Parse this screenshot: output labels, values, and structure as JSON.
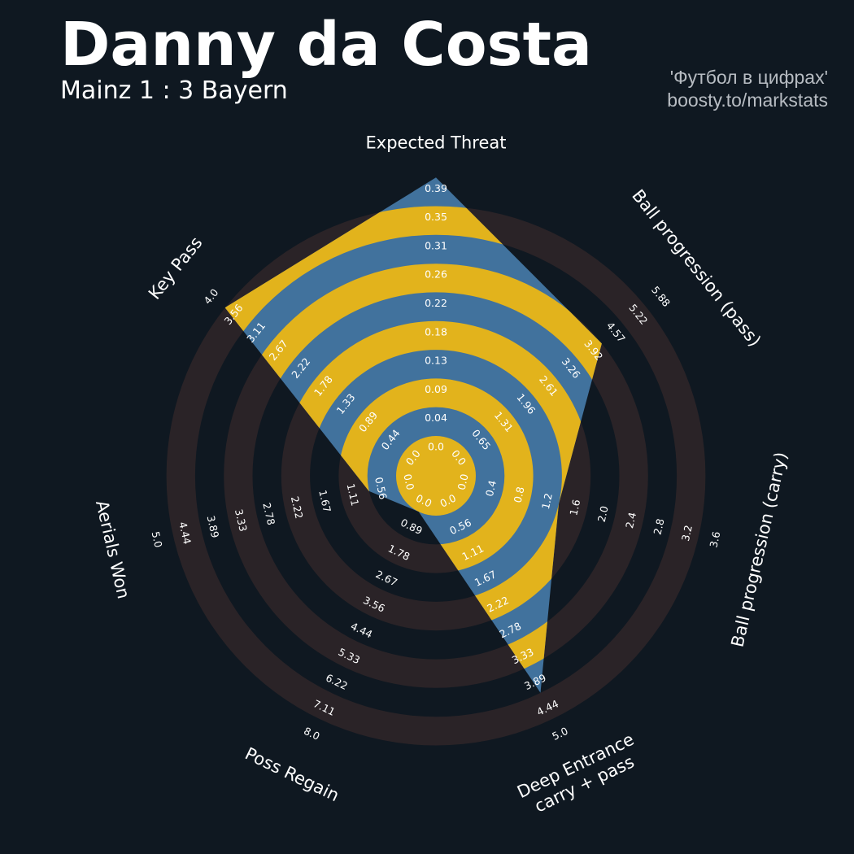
{
  "header": {
    "title": "Danny da Costa",
    "subtitle": "Mainz 1 : 3 Bayern",
    "credit_line1": "'Футбол в цифрах'",
    "credit_line2": "boosty.to/markstats"
  },
  "colors": {
    "background": "#0f1821",
    "ring_dark": "#2a2327",
    "ring_yellow": "#e2b31c",
    "player_fill": "#41729d",
    "label": "#ffffff",
    "credit": "#b7bcc2"
  },
  "chart_data": {
    "type": "radar",
    "title": "Danny da Costa",
    "subtitle": "Mainz 1 : 3 Bayern",
    "metrics": [
      {
        "name": "Expected Threat",
        "value": 0.39,
        "ticks": [
          "0.0",
          "0.04",
          "0.09",
          "0.13",
          "0.18",
          "0.22",
          "0.26",
          "0.31",
          "0.35",
          "0.39"
        ]
      },
      {
        "name": "Ball progression (pass)",
        "value": 3.92,
        "ticks": [
          "0.0",
          "0.65",
          "1.31",
          "1.96",
          "2.61",
          "3.26",
          "3.92",
          "4.57",
          "5.22",
          "5.88"
        ]
      },
      {
        "name": "Ball progression (carry)",
        "value": 1.2,
        "ticks": [
          "0.0",
          "0.4",
          "0.8",
          "1.2",
          "1.6",
          "2.0",
          "2.4",
          "2.8",
          "3.2",
          "3.6"
        ]
      },
      {
        "name": "Deep Entrance\ncarry + pass",
        "value": 3.89,
        "ticks": [
          "0.0",
          "0.56",
          "1.11",
          "1.67",
          "2.22",
          "2.78",
          "3.33",
          "3.89",
          "4.44",
          "5.0"
        ]
      },
      {
        "name": "Poss Regain",
        "value": 0.0,
        "ticks": [
          "0.0",
          "0.89",
          "1.78",
          "2.67",
          "3.56",
          "4.44",
          "5.33",
          "6.22",
          "7.11",
          "8.0"
        ]
      },
      {
        "name": "Aerials Won",
        "value": 0.56,
        "ticks": [
          "0.0",
          "0.56",
          "1.11",
          "1.67",
          "2.22",
          "2.78",
          "3.33",
          "3.89",
          "4.44",
          "5.0"
        ]
      },
      {
        "name": "Key Pass",
        "value": 3.56,
        "ticks": [
          "0.0",
          "0.44",
          "0.89",
          "1.33",
          "1.78",
          "2.22",
          "2.67",
          "3.11",
          "3.56",
          "4.0"
        ]
      }
    ]
  }
}
